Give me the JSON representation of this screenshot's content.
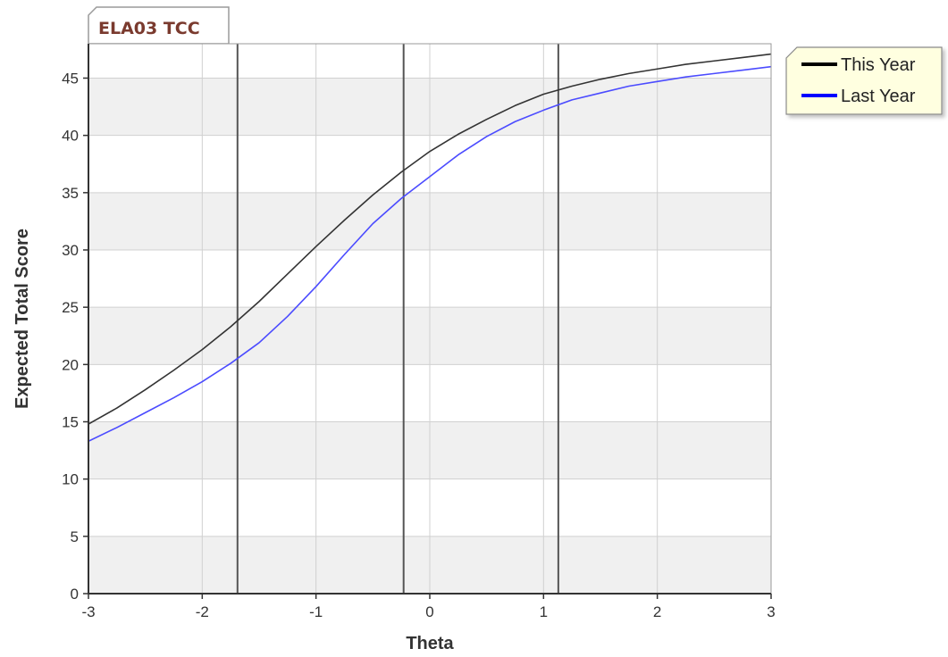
{
  "chart_data": {
    "type": "line",
    "title": "ELA03 TCC",
    "xlabel": "Theta",
    "ylabel": "Expected Total Score",
    "xlim": [
      -3,
      3
    ],
    "ylim": [
      0,
      48
    ],
    "x_ticks": [
      -3,
      -2,
      -1,
      0,
      1,
      2,
      3
    ],
    "y_ticks": [
      0,
      5,
      10,
      15,
      20,
      25,
      30,
      35,
      40,
      45
    ],
    "grid": true,
    "legend_position": "top-right, outside plot",
    "vertical_lines": [
      -1.69,
      -0.23,
      1.13
    ],
    "series": [
      {
        "name": "This Year",
        "color": "#333333",
        "x": [
          -3.0,
          -2.75,
          -2.5,
          -2.25,
          -2.0,
          -1.75,
          -1.5,
          -1.25,
          -1.0,
          -0.75,
          -0.5,
          -0.25,
          0.0,
          0.25,
          0.5,
          0.75,
          1.0,
          1.25,
          1.5,
          1.75,
          2.0,
          2.25,
          2.5,
          2.75,
          3.0
        ],
        "y": [
          14.8,
          16.2,
          17.8,
          19.5,
          21.3,
          23.3,
          25.5,
          27.9,
          30.3,
          32.6,
          34.8,
          36.8,
          38.6,
          40.1,
          41.4,
          42.6,
          43.6,
          44.3,
          44.9,
          45.4,
          45.8,
          46.2,
          46.5,
          46.8,
          47.1
        ]
      },
      {
        "name": "Last Year",
        "color": "#4b4bff",
        "x": [
          -3.0,
          -2.75,
          -2.5,
          -2.25,
          -2.0,
          -1.75,
          -1.5,
          -1.25,
          -1.0,
          -0.75,
          -0.5,
          -0.25,
          0.0,
          0.25,
          0.5,
          0.75,
          1.0,
          1.25,
          1.5,
          1.75,
          2.0,
          2.25,
          2.5,
          2.75,
          3.0
        ],
        "y": [
          13.3,
          14.5,
          15.8,
          17.1,
          18.5,
          20.1,
          21.9,
          24.2,
          26.8,
          29.6,
          32.3,
          34.5,
          36.4,
          38.3,
          39.9,
          41.2,
          42.2,
          43.1,
          43.7,
          44.3,
          44.7,
          45.1,
          45.4,
          45.7,
          46.0
        ]
      }
    ]
  }
}
